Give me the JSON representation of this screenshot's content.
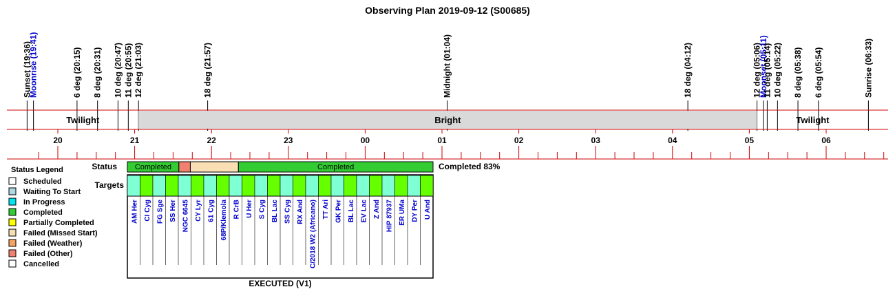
{
  "title": "Observing Plan 2019-09-12 (S00685)",
  "events": [
    {
      "label": "Sunset (19:36)",
      "t": 19.6,
      "color": "#000000"
    },
    {
      "label": "Moonrise (19:41)",
      "t": 19.683,
      "color": "#0000cc"
    },
    {
      "label": "6 deg (20:15)",
      "t": 20.25,
      "color": "#000000"
    },
    {
      "label": "8 deg (20:31)",
      "t": 20.517,
      "color": "#000000"
    },
    {
      "label": "10 deg (20:47)",
      "t": 20.783,
      "color": "#000000"
    },
    {
      "label": "11 deg (20:55)",
      "t": 20.917,
      "color": "#000000"
    },
    {
      "label": "12 deg (21:03)",
      "t": 21.05,
      "color": "#000000"
    },
    {
      "label": "18 deg (21:57)",
      "t": 21.95,
      "color": "#000000"
    },
    {
      "label": "Midnight (01:04)",
      "t": 25.067,
      "color": "#000000"
    },
    {
      "label": "18 deg (04:12)",
      "t": 28.2,
      "color": "#000000"
    },
    {
      "label": "12 deg (05:06)",
      "t": 29.1,
      "color": "#000000"
    },
    {
      "label": "Moonset (05:11)",
      "t": 29.183,
      "color": "#0000cc"
    },
    {
      "label": "11 deg (05:14)",
      "t": 29.233,
      "color": "#000000"
    },
    {
      "label": "10 deg (05:22)",
      "t": 29.367,
      "color": "#000000"
    },
    {
      "label": "8 deg (05:38)",
      "t": 29.633,
      "color": "#000000"
    },
    {
      "label": "6 deg (05:54)",
      "t": 29.9,
      "color": "#000000"
    },
    {
      "label": "Sunrise (06:33)",
      "t": 30.55,
      "color": "#000000"
    }
  ],
  "bands": [
    {
      "label": "Twilight",
      "start": 19.6,
      "end": 21.05,
      "shaded": false
    },
    {
      "label": "Bright",
      "start": 21.05,
      "end": 29.1,
      "shaded": true
    },
    {
      "label": "Twilight",
      "start": 29.1,
      "end": 30.55,
      "shaded": false
    }
  ],
  "hour_labels": [
    "20",
    "21",
    "22",
    "23",
    "00",
    "01",
    "02",
    "03",
    "04",
    "05",
    "06"
  ],
  "status_label": "Status",
  "targets_label": "Targets",
  "status_summary": "Completed 83%",
  "footer": "EXECUTED (V1)",
  "legend": {
    "title": "Status Legend",
    "items": [
      {
        "label": "Scheduled",
        "color": "#ffffff"
      },
      {
        "label": "Waiting To Start",
        "color": "#add8e6"
      },
      {
        "label": "In Progress",
        "color": "#00e5ee"
      },
      {
        "label": "Completed",
        "color": "#33cc33"
      },
      {
        "label": "Partially Completed",
        "color": "#ffff00"
      },
      {
        "label": "Failed (Missed Start)",
        "color": "#f5deb3"
      },
      {
        "label": "Failed (Weather)",
        "color": "#f4a460"
      },
      {
        "label": "Failed (Other)",
        "color": "#f08070"
      },
      {
        "label": "Cancelled",
        "color": "#ffffff"
      }
    ]
  },
  "colors": {
    "red_line": "#cc0000",
    "completed": "#33cc33",
    "failed_other": "#f08070",
    "missed_start": "#f9dfb3",
    "target_a": "#7fffd4",
    "target_b": "#66ff00",
    "target_text": "#0000cc",
    "bright_fill": "#d9d9d9"
  },
  "status_segments": [
    {
      "label": "Completed",
      "units": 4.5,
      "color": "#33cc33"
    },
    {
      "label": "",
      "units": 1,
      "color": "#f08070"
    },
    {
      "label": "",
      "units": 4.2,
      "color": "#f9dfb3"
    },
    {
      "label": "Completed",
      "units": 17,
      "color": "#33cc33"
    }
  ],
  "targets": [
    {
      "name": "AM Her",
      "units": 1
    },
    {
      "name": "CI Cyg",
      "units": 1
    },
    {
      "name": "FG Sge",
      "units": 1
    },
    {
      "name": "SS Her",
      "units": 1
    },
    {
      "name": "NGC 6645",
      "units": 1
    },
    {
      "name": "CY Lyr",
      "units": 1
    },
    {
      "name": "61 Cyg",
      "units": 1
    },
    {
      "name": "68P/Klemola",
      "units": 1
    },
    {
      "name": "R CrB",
      "units": 1
    },
    {
      "name": "U Her",
      "units": 1
    },
    {
      "name": "S Cyg",
      "units": 1
    },
    {
      "name": "BL Lac",
      "units": 1
    },
    {
      "name": "SS Cyg",
      "units": 1
    },
    {
      "name": "RX And",
      "units": 1
    },
    {
      "name": "C/2018 W2 (Africano)",
      "units": 1
    },
    {
      "name": "TT Ari",
      "units": 1
    },
    {
      "name": "GK Per",
      "units": 1
    },
    {
      "name": "BL Lac",
      "units": 1
    },
    {
      "name": "EV Lac",
      "units": 1
    },
    {
      "name": "Z And",
      "units": 1
    },
    {
      "name": "HIP 87937",
      "units": 1
    },
    {
      "name": "ER UMa",
      "units": 1
    },
    {
      "name": "DY Per",
      "units": 1
    },
    {
      "name": "U And",
      "units": 1
    }
  ],
  "chart_data": {
    "type": "timeline",
    "title": "Observing Plan 2019-09-12 (S00685)",
    "x_unit": "hour (continuous, 24+ means after midnight)",
    "xlim": [
      19.4,
      30.9
    ],
    "events_ref": "events",
    "bands_ref": "bands",
    "targets_ref": "targets"
  }
}
